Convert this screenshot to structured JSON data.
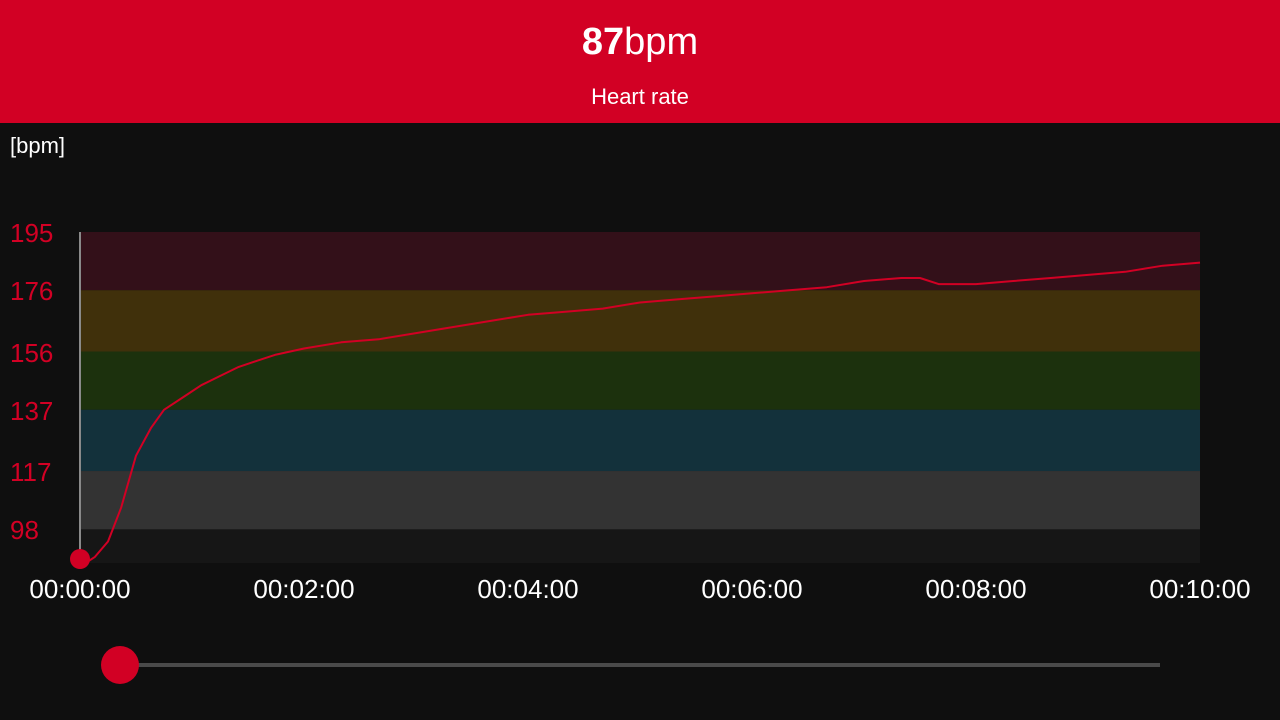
{
  "header": {
    "value": "87",
    "unit": "bpm",
    "label": "Heart rate"
  },
  "colors": {
    "accent": "#d20024",
    "background": "#0f0f0f",
    "zones": [
      "#331019",
      "#40300b",
      "#1c310d",
      "#13313b",
      "#333333"
    ]
  },
  "playback": {
    "position_fraction": 0.0
  },
  "chart_data": {
    "type": "line",
    "ylabel": "[bpm]",
    "y_ticks": [
      "195",
      "176",
      "156",
      "137",
      "117",
      "98"
    ],
    "x_ticks": [
      "00:00:00",
      "00:02:00",
      "00:04:00",
      "00:06:00",
      "00:08:00",
      "00:10:00"
    ],
    "xlim": [
      0,
      600
    ],
    "ylim": [
      87,
      195
    ],
    "grid": false,
    "zones": [
      {
        "from": 176,
        "to": 195
      },
      {
        "from": 156,
        "to": 176
      },
      {
        "from": 137,
        "to": 156
      },
      {
        "from": 117,
        "to": 137
      },
      {
        "from": 98,
        "to": 117
      }
    ],
    "series": [
      {
        "x": [
          0,
          3,
          8,
          15,
          22,
          30,
          38,
          45,
          55,
          65,
          75,
          85,
          95,
          105,
          120,
          140,
          160,
          180,
          200,
          220,
          240,
          260,
          280,
          300,
          320,
          340,
          360,
          380,
          400,
          420,
          440,
          450,
          460,
          480,
          500,
          520,
          540,
          560,
          580,
          600
        ],
        "y": [
          87,
          87,
          89,
          94,
          105,
          122,
          131,
          137,
          141,
          145,
          148,
          151,
          153,
          155,
          157,
          159,
          160,
          162,
          164,
          166,
          168,
          169,
          170,
          172,
          173,
          174,
          175,
          176,
          177,
          179,
          180,
          180,
          178,
          178,
          179,
          180,
          181,
          182,
          184,
          185
        ]
      }
    ],
    "current_marker": {
      "x": 0,
      "y": 87
    }
  }
}
